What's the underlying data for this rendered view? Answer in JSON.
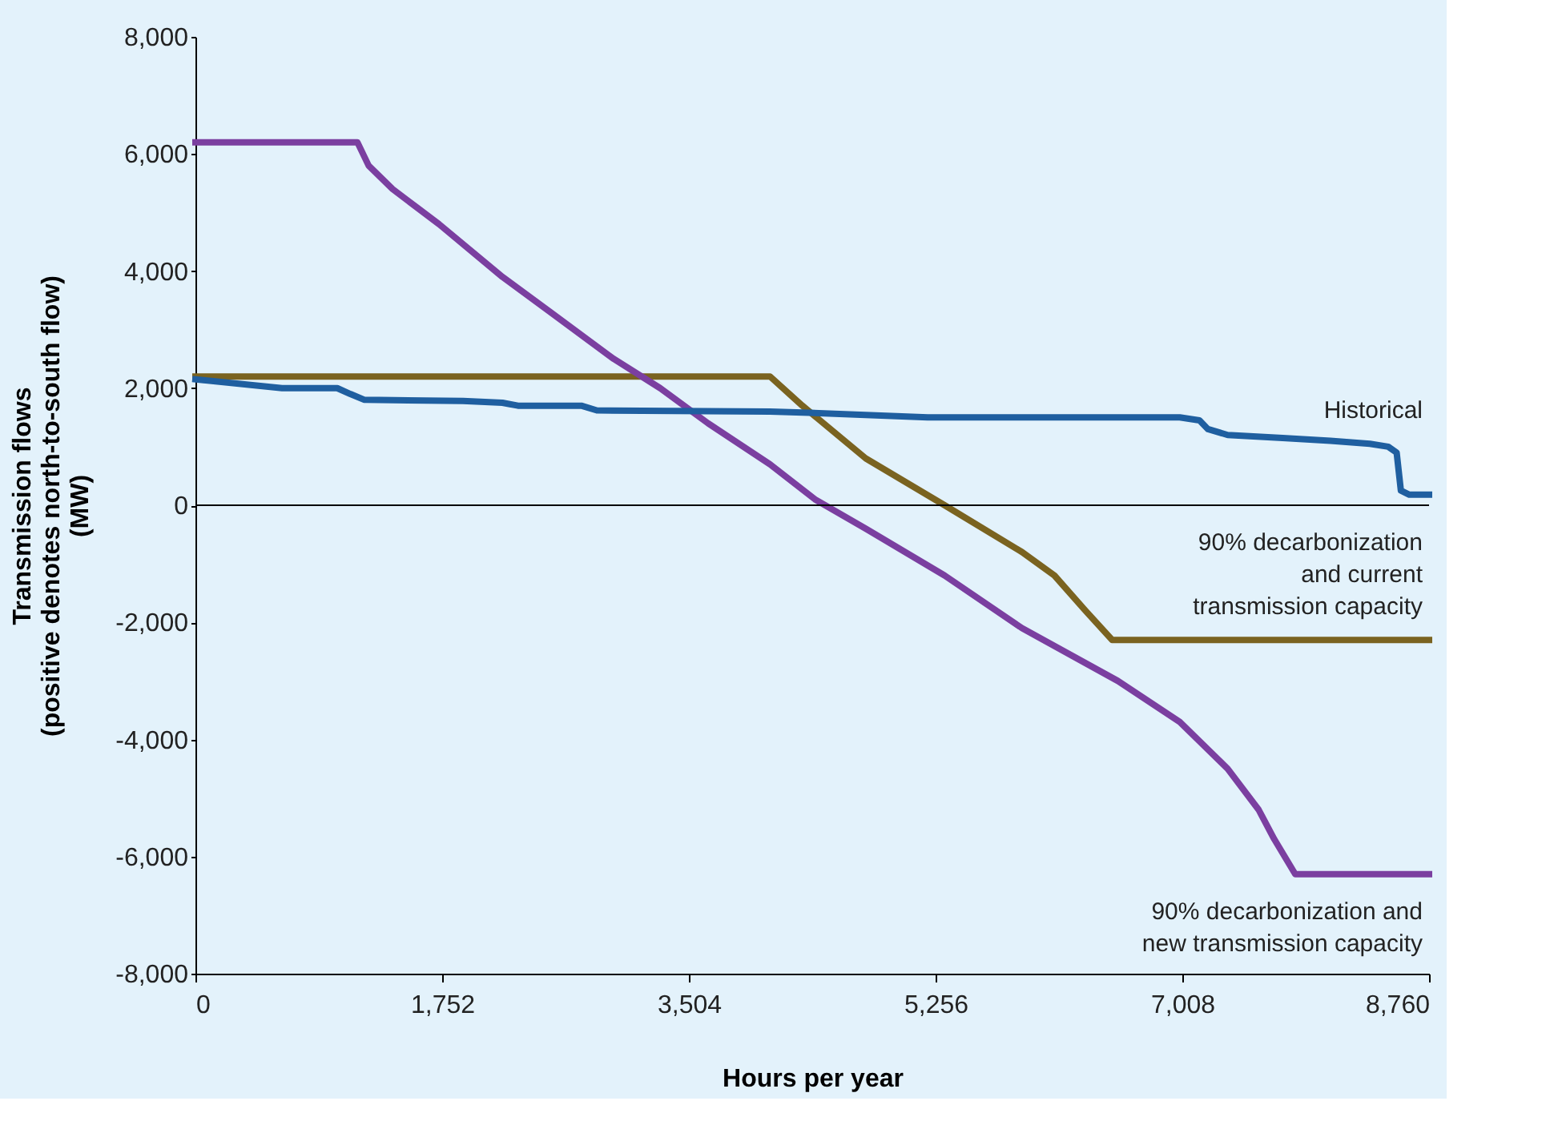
{
  "chart_data": {
    "type": "line",
    "xlabel": "Hours per year",
    "ylabel": "Transmission flows\n(positive denotes north-to-south flow)\n(MW)",
    "xlim": [
      0,
      8760
    ],
    "ylim": [
      -8000,
      8000
    ],
    "xticks": [
      {
        "value": 0,
        "label": "0"
      },
      {
        "value": 1752,
        "label": "1,752"
      },
      {
        "value": 3504,
        "label": "3,504"
      },
      {
        "value": 5256,
        "label": "5,256"
      },
      {
        "value": 7008,
        "label": "7,008"
      },
      {
        "value": 8760,
        "label": "8,760"
      }
    ],
    "yticks": [
      {
        "value": -8000,
        "label": "-8,000"
      },
      {
        "value": -6000,
        "label": "-6,000"
      },
      {
        "value": -4000,
        "label": "-4,000"
      },
      {
        "value": -2000,
        "label": "-2,000"
      },
      {
        "value": 0,
        "label": "0"
      },
      {
        "value": 2000,
        "label": "2,000"
      },
      {
        "value": 4000,
        "label": "4,000"
      },
      {
        "value": 6000,
        "label": "6,000"
      },
      {
        "value": 8000,
        "label": "8,000"
      }
    ],
    "grid": false,
    "legend": false,
    "marker": "none",
    "line_style": "solid",
    "ref_lines": [
      {
        "axis": "y",
        "value": 0,
        "color": "#000000"
      }
    ],
    "series": [
      {
        "name": "90% decarbonization\nand current\ntransmission capacity",
        "color": "#7a6320",
        "x": [
          0,
          4080,
          4310,
          4760,
          5320,
          5870,
          6100,
          6320,
          6510,
          8760
        ],
        "values": [
          2200,
          2200,
          1700,
          800,
          0,
          -800,
          -1200,
          -1800,
          -2300,
          -2300
        ]
      },
      {
        "name": "90% decarbonization and\nnew transmission capacity",
        "color": "#7b3fa0",
        "x": [
          0,
          1150,
          1230,
          1400,
          1730,
          2180,
          2520,
          2970,
          3300,
          3640,
          4080,
          4400,
          4760,
          5320,
          5870,
          6550,
          6990,
          7330,
          7550,
          7660,
          7810,
          8760
        ],
        "values": [
          6200,
          6200,
          5800,
          5400,
          4800,
          3900,
          3300,
          2500,
          2000,
          1400,
          700,
          100,
          -400,
          -1200,
          -2100,
          -3000,
          -3700,
          -4500,
          -5200,
          -5700,
          -6300,
          -6300
        ]
      },
      {
        "name": "Historical",
        "color": "#1f5fa0",
        "x": [
          0,
          615,
          1007,
          1100,
          1200,
          1900,
          2180,
          2290,
          2740,
          2850,
          4080,
          4360,
          5200,
          6990,
          7130,
          7190,
          7330,
          7720,
          8060,
          8340,
          8470,
          8530,
          8560,
          8620,
          8760
        ],
        "values": [
          2150,
          2000,
          2000,
          1900,
          1800,
          1780,
          1750,
          1700,
          1700,
          1620,
          1600,
          1580,
          1500,
          1500,
          1450,
          1300,
          1200,
          1150,
          1100,
          1050,
          1000,
          900,
          250,
          180,
          180
        ]
      }
    ]
  }
}
